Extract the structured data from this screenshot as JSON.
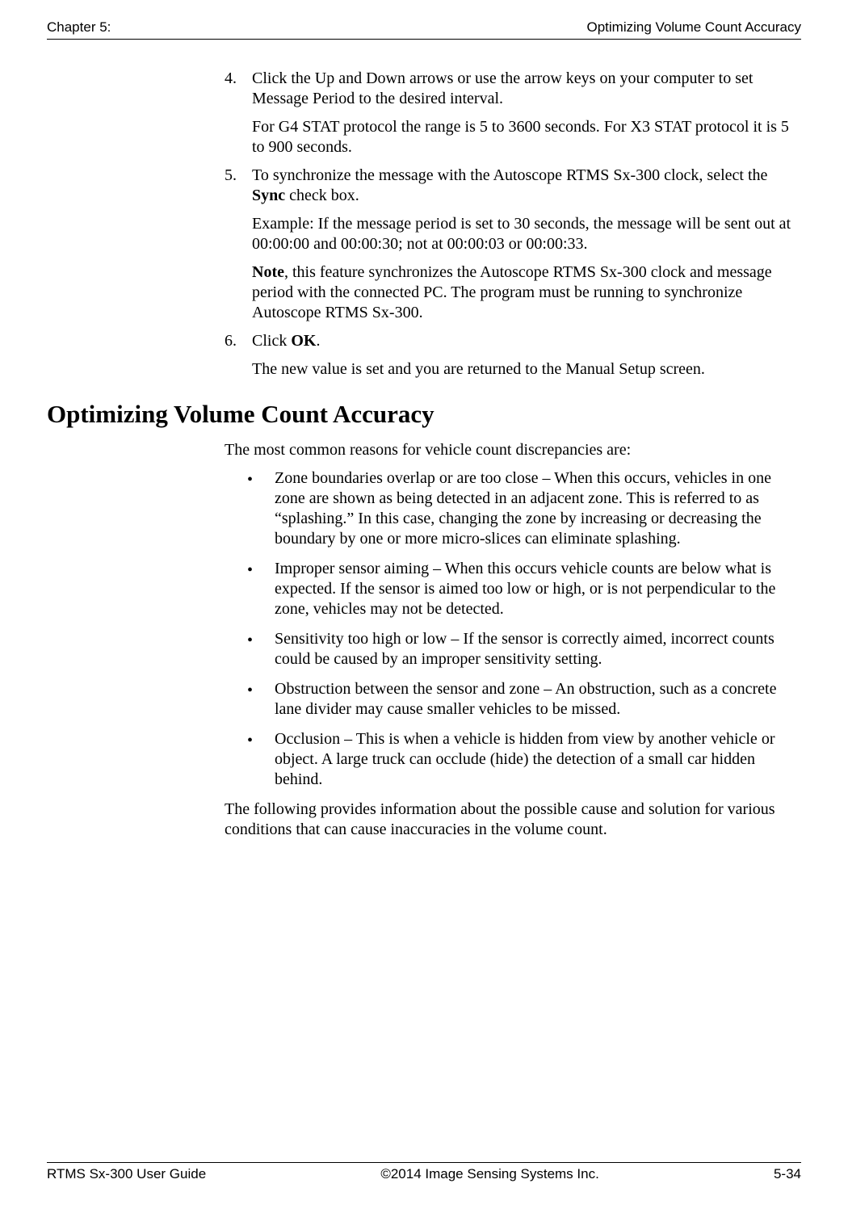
{
  "header": {
    "left": "Chapter 5:",
    "right": "Optimizing Volume Count Accuracy"
  },
  "steps": [
    {
      "num": "4.",
      "paras": [
        {
          "segments": [
            {
              "t": "Click the Up and Down arrows or use the arrow keys on your computer to set Message Period to the desired interval."
            }
          ]
        },
        {
          "segments": [
            {
              "t": "For G4 STAT protocol the range is 5 to 3600 seconds. For X3 STAT protocol it is 5 to 900 seconds."
            }
          ]
        }
      ]
    },
    {
      "num": "5.",
      "paras": [
        {
          "segments": [
            {
              "t": "To synchronize the message with the Autoscope RTMS Sx-300 clock, select the "
            },
            {
              "t": "Sync",
              "bold": true
            },
            {
              "t": " check box."
            }
          ]
        },
        {
          "segments": [
            {
              "t": "Example: If the message period is set to 30 seconds, the message will be sent out at 00:00:00 and 00:00:30; not at 00:00:03 or 00:00:33."
            }
          ]
        },
        {
          "segments": [
            {
              "t": "Note",
              "bold": true
            },
            {
              "t": ", this feature synchronizes the Autoscope RTMS Sx-300 clock and message period with the connected PC. The program must be running to synchronize Autoscope RTMS Sx-300."
            }
          ]
        }
      ]
    },
    {
      "num": "6.",
      "paras": [
        {
          "segments": [
            {
              "t": "Click "
            },
            {
              "t": "OK",
              "bold": true
            },
            {
              "t": "."
            }
          ]
        },
        {
          "segments": [
            {
              "t": "The new value is set and you are returned to the Manual Setup screen."
            }
          ]
        }
      ]
    }
  ],
  "section": {
    "heading": "Optimizing Volume Count Accuracy",
    "intro": "The most common reasons for vehicle count discrepancies are:",
    "bullets": [
      "Zone boundaries overlap or are too close – When this occurs, vehicles in one zone are shown as being detected in an adjacent zone. This is referred to as “splashing.” In this case, changing the zone by increasing or decreasing the boundary by one or more micro-slices can eliminate splashing.",
      "Improper sensor aiming – When this occurs vehicle counts are below what is expected. If the sensor is aimed too low or high, or is not perpendicular to the zone, vehicles may not be detected.",
      "Sensitivity too high or low – If the sensor is correctly aimed, incorrect counts could be caused by an improper sensitivity setting.",
      "Obstruction between the sensor and zone – An obstruction, such as a concrete lane divider may cause smaller vehicles to be missed.",
      "Occlusion – This is when a vehicle is hidden from view by another vehicle or object. A large truck can occlude (hide) the detection of a small car hidden behind."
    ],
    "outro": "The following provides information about the possible cause and solution for various conditions that can cause inaccuracies in the volume count."
  },
  "footer": {
    "left": "RTMS Sx-300 User Guide",
    "center": "©2014 Image Sensing Systems Inc.",
    "right": "5-34"
  }
}
